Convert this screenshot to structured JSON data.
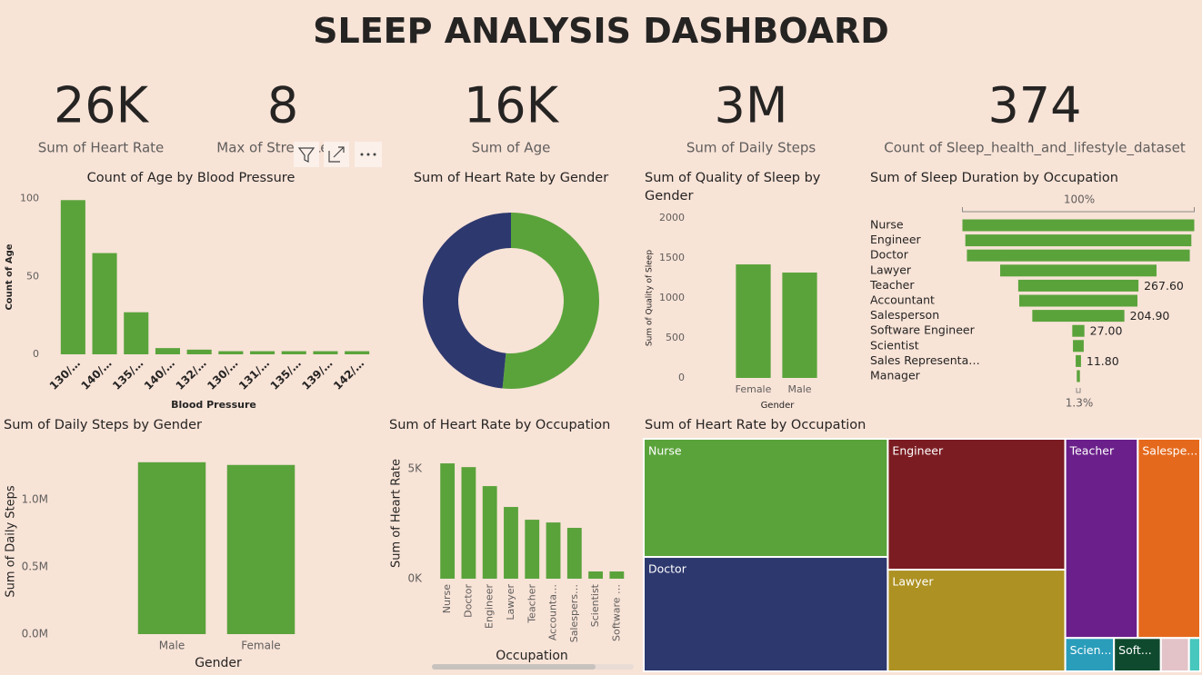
{
  "header": {
    "title": "SLEEP ANALYSIS DASHBOARD"
  },
  "kpis": [
    {
      "value": "26K",
      "label": "Sum of Heart Rate"
    },
    {
      "value": "8",
      "label": "Max of Stress Level"
    },
    {
      "value": "16K",
      "label": "Sum of Age"
    },
    {
      "value": "3M",
      "label": "Sum of Daily Steps"
    },
    {
      "value": "374",
      "label": "Count of Sleep_health_and_lifestyle_dataset"
    }
  ],
  "chart_data": [
    {
      "type": "bar",
      "title": "Count of Age by Blood Pressure",
      "categories": [
        "130/…",
        "140/…",
        "135/…",
        "140/…",
        "132/…",
        "130/…",
        "131/…",
        "135/…",
        "139/…",
        "142/…"
      ],
      "values": [
        99,
        65,
        27,
        4,
        3,
        2,
        2,
        2,
        2,
        2
      ],
      "color": "#5aa33b",
      "ylim": [
        0,
        105
      ],
      "yticks": [
        0,
        50,
        100
      ],
      "x_label": "Blood Pressure",
      "y_label": "Count of Age"
    },
    {
      "type": "donut",
      "title": "Sum of Heart Rate by Gender",
      "categories": [
        null,
        null
      ],
      "values": [
        13400,
        12600
      ],
      "colors": [
        "#5aa33b",
        "#2d386e"
      ]
    },
    {
      "type": "bar",
      "title": "Sum of Quality of Sleep by Gender",
      "categories": [
        "Female",
        "Male"
      ],
      "values": [
        1420,
        1318
      ],
      "color": "#5aa33b",
      "ylim": [
        0,
        2000
      ],
      "yticks": [
        0,
        500,
        1000,
        1500,
        2000
      ],
      "x_label": "Gender",
      "y_label": "Sum of Quality of Sleep"
    },
    {
      "type": "funnel",
      "title": "Sum of Sleep Duration by Occupation",
      "categories": [
        "Nurse",
        "Engineer",
        "Doctor",
        "Lawyer",
        "Teacher",
        "Accountant",
        "Salesperson",
        "Software Engineer",
        "Scientist",
        "Sales Representa…",
        "Manager"
      ],
      "values": [
        516,
        503,
        496,
        348,
        267.6,
        263,
        204.9,
        27,
        24,
        11.8,
        6.9
      ],
      "value_labels": [
        null,
        null,
        null,
        null,
        "267.60",
        null,
        "204.90",
        "27.00",
        null,
        "11.80",
        null
      ],
      "color": "#5aa33b",
      "top_label": "100%",
      "bottom_label": "1.3%"
    },
    {
      "type": "bar",
      "title": "Sum of Daily Steps by Gender",
      "categories": [
        "Male",
        "Female"
      ],
      "values": [
        1277000,
        1257000
      ],
      "color": "#5aa33b",
      "ylim": [
        0,
        1350000
      ],
      "yticks": [
        {
          "value": 0,
          "label": "0.0M"
        },
        {
          "value": 500000,
          "label": "0.5M"
        },
        {
          "value": 1000000,
          "label": "1.0M"
        }
      ],
      "x_label": "Gender",
      "y_label": "Sum of Daily Steps"
    },
    {
      "type": "bar",
      "title": "Sum of Heart Rate by Occupation",
      "categories": [
        "Nurse",
        "Doctor",
        "Engineer",
        "Lawyer",
        "Teacher",
        "Accounta…",
        "Salespers…",
        "Scientist",
        "Software …"
      ],
      "values": [
        5250,
        5080,
        4215,
        3265,
        2685,
        2560,
        2315,
        330,
        330
      ],
      "color": "#5aa33b",
      "ylim": [
        0,
        5500
      ],
      "yticks": [
        {
          "value": 0,
          "label": "0K"
        },
        {
          "value": 5000,
          "label": "5K"
        }
      ],
      "x_label": "Occupation",
      "y_label": "Sum of Heart Rate"
    },
    {
      "type": "treemap",
      "title": "Sum of Heart Rate by Occupation",
      "categories": [
        "Nurse",
        "Doctor",
        "Engineer",
        "Lawyer",
        "Teacher",
        "Salespe...",
        "Scien...",
        "Soft...",
        null,
        null
      ],
      "values": [
        5250,
        5085,
        4230,
        3285,
        2630,
        2263,
        296,
        285,
        171,
        68
      ],
      "colors": [
        "#5aa33b",
        "#2d386e",
        "#7b1c22",
        "#ad9122",
        "#6a1f8a",
        "#e5691c",
        "#2a9dbb",
        "#0f4a2e",
        "#e3c3c8",
        "#47c7bd"
      ]
    }
  ]
}
